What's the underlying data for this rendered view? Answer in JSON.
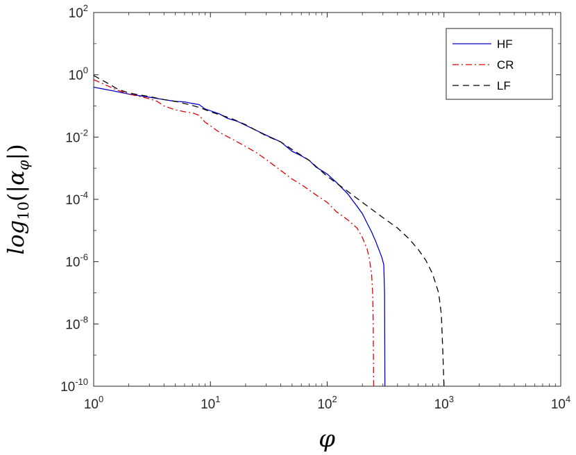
{
  "chart_data": {
    "type": "line",
    "xlabel": "φ",
    "ylabel": {
      "prefix": "log",
      "subscript": "10",
      "open": "(|",
      "symbol": "α",
      "symbol_sub": "φ",
      "close": "|)"
    },
    "xscale": "log",
    "yscale": "log",
    "xlim": [
      1,
      10000
    ],
    "ylim": [
      1e-10,
      100
    ],
    "x_ticks": [
      {
        "value": 1,
        "base": "10",
        "exp": "0"
      },
      {
        "value": 10,
        "base": "10",
        "exp": "1"
      },
      {
        "value": 100,
        "base": "10",
        "exp": "2"
      },
      {
        "value": 1000,
        "base": "10",
        "exp": "3"
      },
      {
        "value": 10000,
        "base": "10",
        "exp": "4"
      }
    ],
    "y_ticks": [
      {
        "value": 1e-10,
        "base": "10",
        "exp": "-10"
      },
      {
        "value": 1e-08,
        "base": "10",
        "exp": "-8"
      },
      {
        "value": 1e-06,
        "base": "10",
        "exp": "-6"
      },
      {
        "value": 0.0001,
        "base": "10",
        "exp": "-4"
      },
      {
        "value": 0.01,
        "base": "10",
        "exp": "-2"
      },
      {
        "value": 1,
        "base": "10",
        "exp": "0"
      },
      {
        "value": 100,
        "base": "10",
        "exp": "2"
      }
    ],
    "grid": false,
    "legend_position": "top-right",
    "series": [
      {
        "name": "HF",
        "color": "#0000CC",
        "dash": "solid",
        "points": [
          [
            1,
            0.4
          ],
          [
            1.5,
            0.3
          ],
          [
            2,
            0.24
          ],
          [
            3,
            0.19
          ],
          [
            4,
            0.16
          ],
          [
            5,
            0.14
          ],
          [
            6,
            0.135
          ],
          [
            7,
            0.12
          ],
          [
            8,
            0.11
          ],
          [
            9,
            0.08
          ],
          [
            10,
            0.07
          ],
          [
            12,
            0.055
          ],
          [
            14,
            0.04
          ],
          [
            17,
            0.032
          ],
          [
            20,
            0.024
          ],
          [
            25,
            0.016
          ],
          [
            30,
            0.0115
          ],
          [
            40,
            0.007
          ],
          [
            50,
            0.0035
          ],
          [
            60,
            0.0025
          ],
          [
            70,
            0.0018
          ],
          [
            80,
            0.0011
          ],
          [
            100,
            0.00065
          ],
          [
            120,
            0.00035
          ],
          [
            150,
            0.00015
          ],
          [
            180,
            6e-05
          ],
          [
            200,
            3.5e-05
          ],
          [
            220,
            1.7e-05
          ],
          [
            240,
            9e-06
          ],
          [
            260,
            4.5e-06
          ],
          [
            280,
            2.2e-06
          ],
          [
            295,
            1.3e-06
          ],
          [
            305,
            8e-07
          ],
          [
            310,
            1e-07
          ],
          [
            312,
            1e-10
          ]
        ]
      },
      {
        "name": "CR",
        "color": "#DD0000",
        "dash": "dashdot",
        "points": [
          [
            1,
            0.7
          ],
          [
            1.3,
            0.45
          ],
          [
            1.6,
            0.32
          ],
          [
            2,
            0.24
          ],
          [
            2.5,
            0.2
          ],
          [
            3,
            0.17
          ],
          [
            3.5,
            0.14
          ],
          [
            4,
            0.1
          ],
          [
            5,
            0.075
          ],
          [
            6,
            0.065
          ],
          [
            7,
            0.06
          ],
          [
            8,
            0.05
          ],
          [
            9,
            0.03
          ],
          [
            10,
            0.023
          ],
          [
            12,
            0.014
          ],
          [
            15,
            0.009
          ],
          [
            20,
            0.005
          ],
          [
            25,
            0.0031
          ],
          [
            30,
            0.0019
          ],
          [
            40,
            0.00085
          ],
          [
            50,
            0.00045
          ],
          [
            60,
            0.0003
          ],
          [
            70,
            0.0002
          ],
          [
            80,
            0.00014
          ],
          [
            100,
            8e-05
          ],
          [
            120,
            4e-05
          ],
          [
            150,
            2.2e-05
          ],
          [
            180,
            1.2e-05
          ],
          [
            200,
            6e-06
          ],
          [
            220,
            2.5e-06
          ],
          [
            230,
            1.2e-06
          ],
          [
            240,
            4e-07
          ],
          [
            245,
            1e-07
          ],
          [
            248,
            1e-08
          ],
          [
            250,
            1e-10
          ]
        ]
      },
      {
        "name": "LF",
        "color": "#000000",
        "dash": "dashed",
        "points": [
          [
            1,
            0.95
          ],
          [
            1.3,
            0.55
          ],
          [
            1.6,
            0.35
          ],
          [
            2,
            0.26
          ],
          [
            3,
            0.2
          ],
          [
            4,
            0.16
          ],
          [
            5,
            0.14
          ],
          [
            6,
            0.12
          ],
          [
            8,
            0.09
          ],
          [
            10,
            0.065
          ],
          [
            15,
            0.04
          ],
          [
            20,
            0.025
          ],
          [
            30,
            0.011
          ],
          [
            40,
            0.007
          ],
          [
            50,
            0.004
          ],
          [
            70,
            0.0018
          ],
          [
            100,
            0.00055
          ],
          [
            150,
            0.00018
          ],
          [
            200,
            8e-05
          ],
          [
            300,
            2.6e-05
          ],
          [
            400,
            1.2e-05
          ],
          [
            500,
            5.5e-06
          ],
          [
            600,
            2.5e-06
          ],
          [
            700,
            1.1e-06
          ],
          [
            800,
            4e-07
          ],
          [
            900,
            1e-07
          ],
          [
            950,
            2e-08
          ],
          [
            980,
            1e-09
          ],
          [
            1000,
            1e-10
          ]
        ]
      }
    ]
  }
}
